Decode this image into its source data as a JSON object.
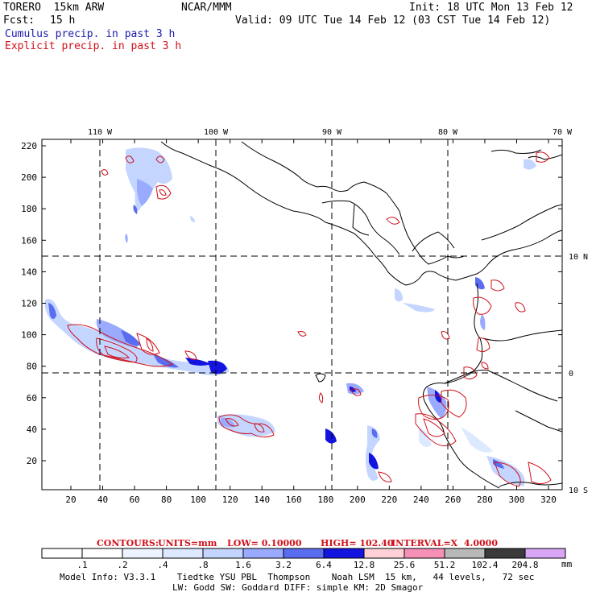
{
  "header": {
    "model": "TORERO  15km ARW",
    "agency": "NCAR/MMM",
    "init": "Init: 18 UTC Mon 13 Feb 12",
    "fcst_label": "Fcst:",
    "fcst_value": "15 h",
    "valid": "Valid: 09 UTC Tue 14 Feb 12 (03 CST Tue 14 Feb 12)",
    "legend_cumulus": "Cumulus precip. in past 3 h",
    "legend_explicit": "Explicit precip. in past 3 h"
  },
  "map": {
    "top_lon_labels": [
      "110 W",
      "100 W",
      "90 W",
      "80 W",
      "70 W"
    ],
    "right_lat_labels": [
      "10 N",
      "0",
      "10 S"
    ],
    "y_ticks": [
      "220",
      "200",
      "180",
      "160",
      "140",
      "120",
      "100",
      "80",
      "60",
      "40",
      "20"
    ],
    "x_ticks": [
      "20",
      "40",
      "60",
      "80",
      "100",
      "120",
      "140",
      "160",
      "180",
      "200",
      "220",
      "240",
      "260",
      "280",
      "300",
      "320"
    ]
  },
  "contours": {
    "label": "CONTOURS:",
    "units": "UNITS=mm",
    "low": "LOW= 0.10000",
    "high": "HIGH= 102.40",
    "interval": "INTERVAL=X  4.0000"
  },
  "colorbar": {
    "labels": [
      ".1",
      ".2",
      ".4",
      ".8",
      "1.6",
      "3.2",
      "6.4",
      "12.8",
      "25.6",
      "51.2",
      "102.4",
      "204.8"
    ],
    "units": "mm",
    "colors": [
      "#ffffff",
      "#ffffff",
      "#eef4ff",
      "#dce9ff",
      "#c4d6ff",
      "#9aabff",
      "#5a6cf0",
      "#1414e0",
      "#ffd0d6",
      "#f690b6",
      "#b8b8b8",
      "#3a3a3a",
      "#d9a6f5"
    ]
  },
  "footer": {
    "line1": "Model Info: V3.3.1    Tiedtke YSU PBL  Thompson    Noah LSM  15 km,   44 levels,   72 sec",
    "line2": "LW: Godd SW: Goddard DIFF: simple KM: 2D Smagor"
  },
  "colors": {
    "cumulus": "#1b1bb0",
    "explicit": "#d0101a"
  }
}
